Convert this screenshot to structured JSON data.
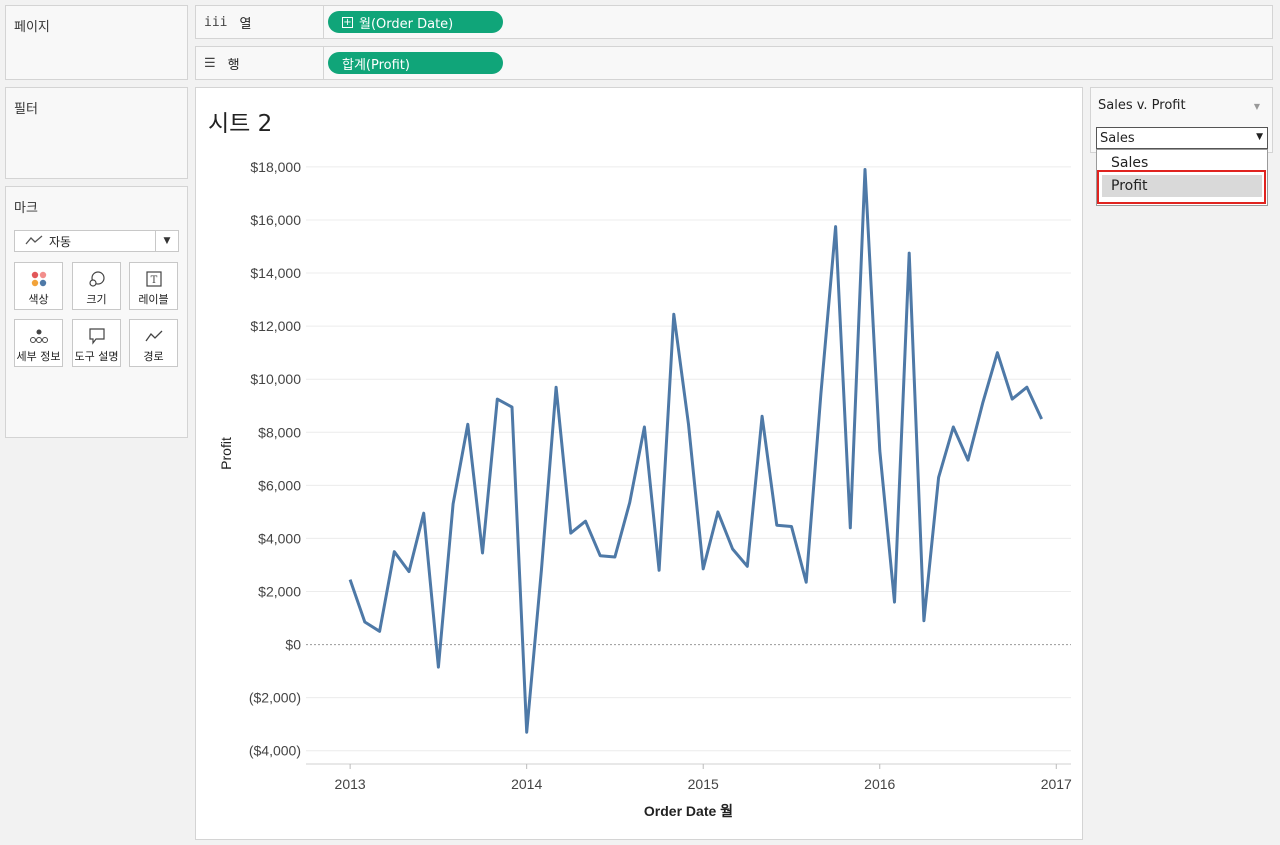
{
  "left": {
    "pages_label": "페이지",
    "filters_label": "필터",
    "marks": {
      "label": "마크",
      "type_label": "자동",
      "buttons": [
        {
          "label": "색상",
          "icon": "color-icon"
        },
        {
          "label": "크기",
          "icon": "size-icon"
        },
        {
          "label": "레이블",
          "icon": "label-icon"
        },
        {
          "label": "세부 정보",
          "icon": "detail-icon"
        },
        {
          "label": "도구 설명",
          "icon": "tooltip-icon"
        },
        {
          "label": "경로",
          "icon": "path-icon"
        }
      ]
    }
  },
  "shelves": {
    "columns": {
      "label": "열",
      "pill": "월(Order Date)"
    },
    "rows": {
      "label": "행",
      "pill": "합계(Profit)"
    }
  },
  "colors": {
    "pill": "#10a579",
    "line": "#4e79a7",
    "highlight": "#e0231f"
  },
  "sheet": {
    "title": "시트 2"
  },
  "parameter": {
    "title": "Sales v. Profit",
    "selected": "Sales",
    "options": [
      "Sales",
      "Profit"
    ],
    "highlighted_option": "Profit"
  },
  "chart_data": {
    "type": "line",
    "xlabel": "Order Date 월",
    "ylabel": "Profit",
    "x_ticks": [
      "2013",
      "2014",
      "2015",
      "2016",
      "2017"
    ],
    "y_ticks": [
      "$18,000",
      "$16,000",
      "$14,000",
      "$12,000",
      "$10,000",
      "$8,000",
      "$6,000",
      "$4,000",
      "$2,000",
      "$0",
      "($2,000)",
      "($4,000)"
    ],
    "ylim": [
      -4500,
      18900
    ],
    "xlim": [
      "2012-10",
      "2017-02"
    ],
    "grid": true,
    "series": [
      {
        "x": [
          "2013-01",
          "2013-02",
          "2013-03",
          "2013-04",
          "2013-05",
          "2013-06",
          "2013-07",
          "2013-08",
          "2013-09",
          "2013-10",
          "2013-11",
          "2013-12",
          "2014-01",
          "2014-02",
          "2014-03",
          "2014-04",
          "2014-05",
          "2014-06",
          "2014-07",
          "2014-08",
          "2014-09",
          "2014-10",
          "2014-11",
          "2014-12",
          "2015-01",
          "2015-02",
          "2015-03",
          "2015-04",
          "2015-05",
          "2015-06",
          "2015-07",
          "2015-08",
          "2015-09",
          "2015-10",
          "2015-11",
          "2015-12",
          "2016-01",
          "2016-02",
          "2016-03",
          "2016-04",
          "2016-05",
          "2016-06",
          "2016-07",
          "2016-08",
          "2016-09",
          "2016-10",
          "2016-11",
          "2016-12"
        ],
        "values": [
          2450,
          850,
          500,
          3500,
          2750,
          4950,
          -850,
          5300,
          8300,
          3450,
          9250,
          8950,
          -3300,
          2800,
          9700,
          4200,
          4650,
          3350,
          3300,
          5350,
          8200,
          2800,
          12450,
          8300,
          2850,
          5000,
          3600,
          2950,
          8600,
          4500,
          4450,
          2350,
          9450,
          15750,
          4400,
          17900,
          7300,
          1600,
          14750,
          900,
          6300,
          8200,
          6950,
          9100,
          11000,
          9250,
          9700,
          8500
        ]
      }
    ]
  }
}
